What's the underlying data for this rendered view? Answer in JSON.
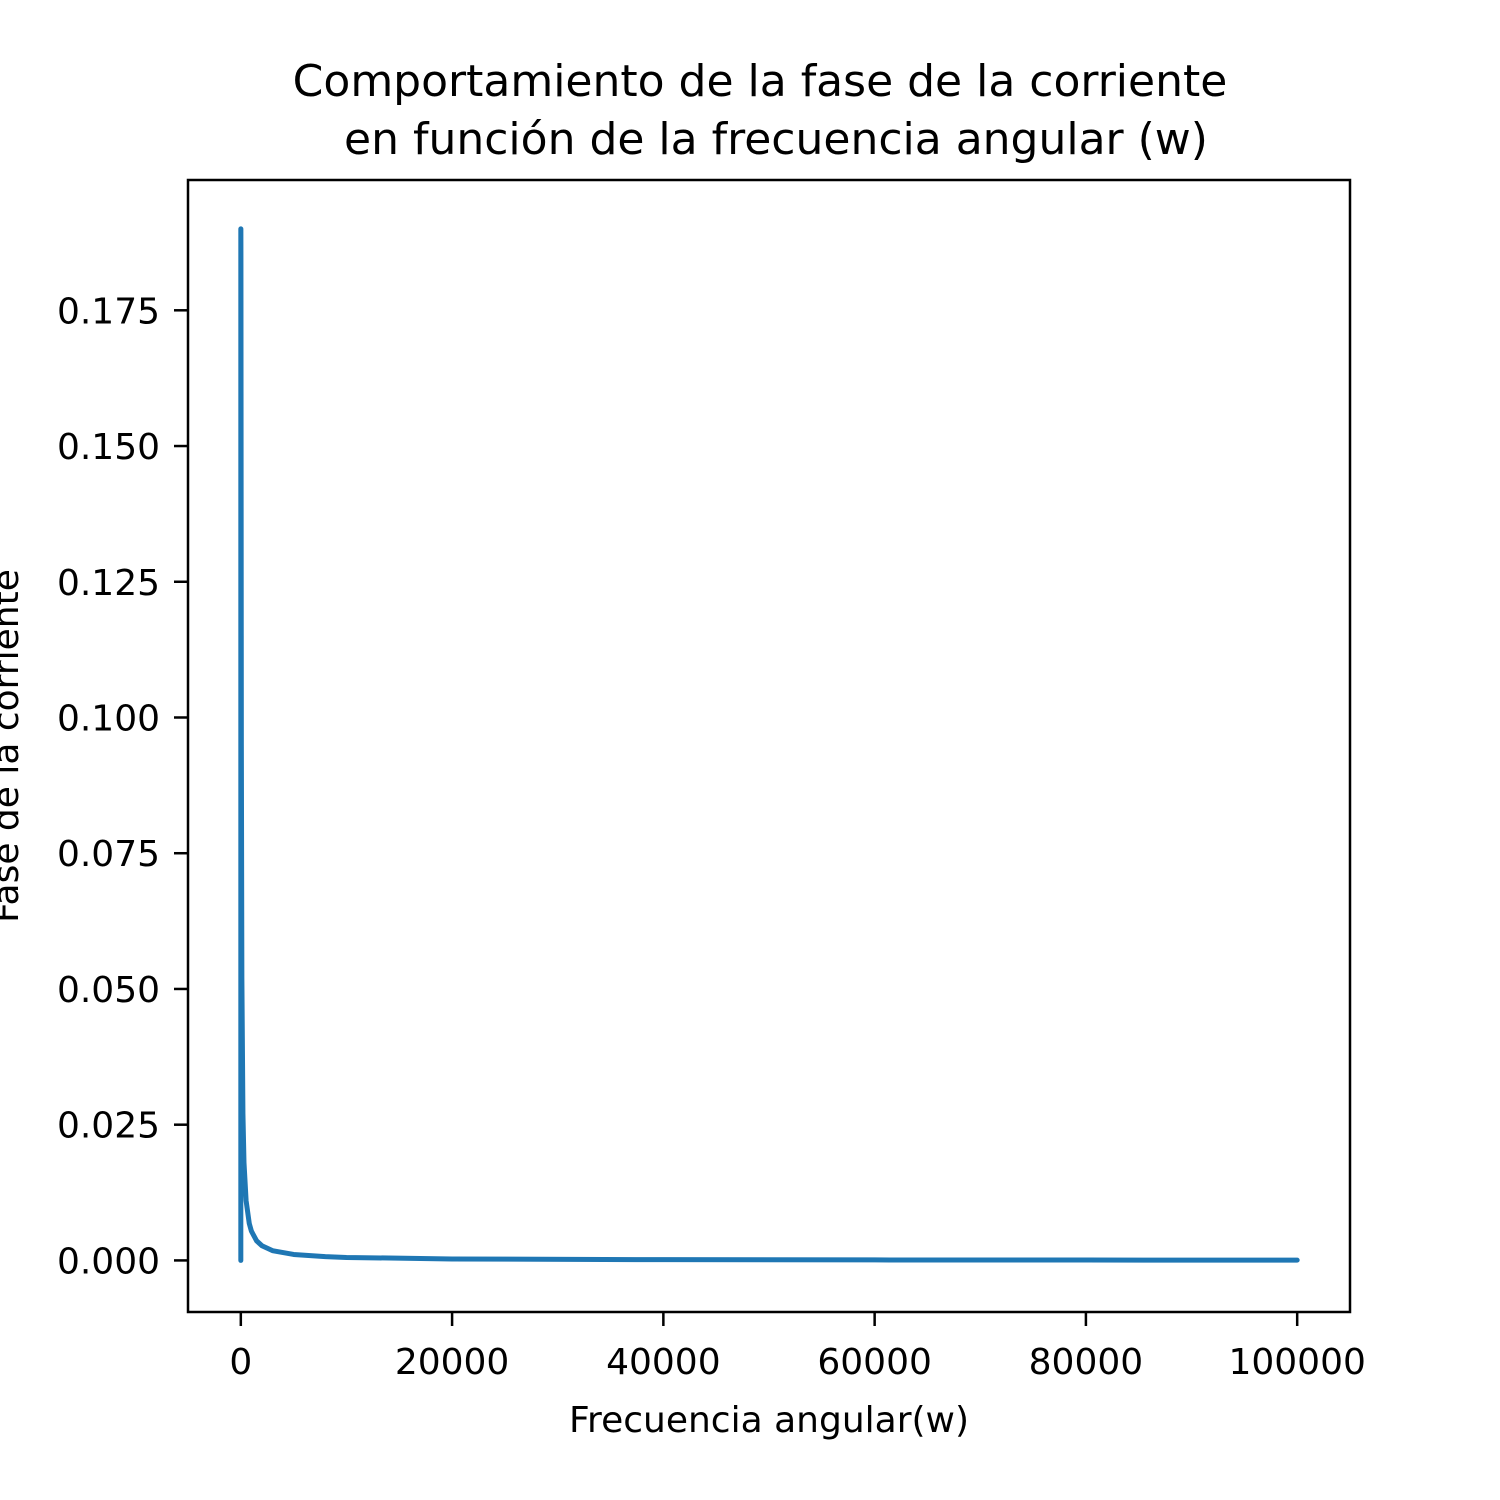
{
  "chart_data": {
    "type": "line",
    "title_line1": "Comportamiento de la fase de la corriente",
    "title_line2": "en función de la frecuencia angular (w)",
    "xlabel": "Frecuencia angular(w)",
    "ylabel": "Fase de la corriente",
    "xlim": [
      -5000,
      105000
    ],
    "ylim": [
      -0.0095,
      0.199
    ],
    "xticks": [
      0,
      20000,
      40000,
      60000,
      80000,
      100000
    ],
    "xtick_labels": [
      "0",
      "20000",
      "40000",
      "60000",
      "80000",
      "100000"
    ],
    "yticks": [
      0.0,
      0.025,
      0.05,
      0.075,
      0.1,
      0.125,
      0.15,
      0.175
    ],
    "ytick_labels": [
      "0.000",
      "0.025",
      "0.050",
      "0.075",
      "0.100",
      "0.125",
      "0.150",
      "0.175"
    ],
    "grid": false,
    "series": [
      {
        "color": "#1f77b4",
        "x": [
          0,
          0,
          5,
          10,
          20,
          50,
          100,
          200,
          300,
          500,
          800,
          1000,
          1500,
          2000,
          3000,
          5000,
          8000,
          10000,
          20000,
          40000,
          60000,
          80000,
          100000
        ],
        "y": [
          0.0,
          0.19,
          0.19,
          0.185,
          0.16,
          0.095,
          0.052,
          0.027,
          0.018,
          0.011,
          0.0068,
          0.0054,
          0.0036,
          0.0027,
          0.0018,
          0.0011,
          0.0007,
          0.00055,
          0.00027,
          0.00014,
          9e-05,
          7e-05,
          5e-05
        ]
      }
    ]
  }
}
